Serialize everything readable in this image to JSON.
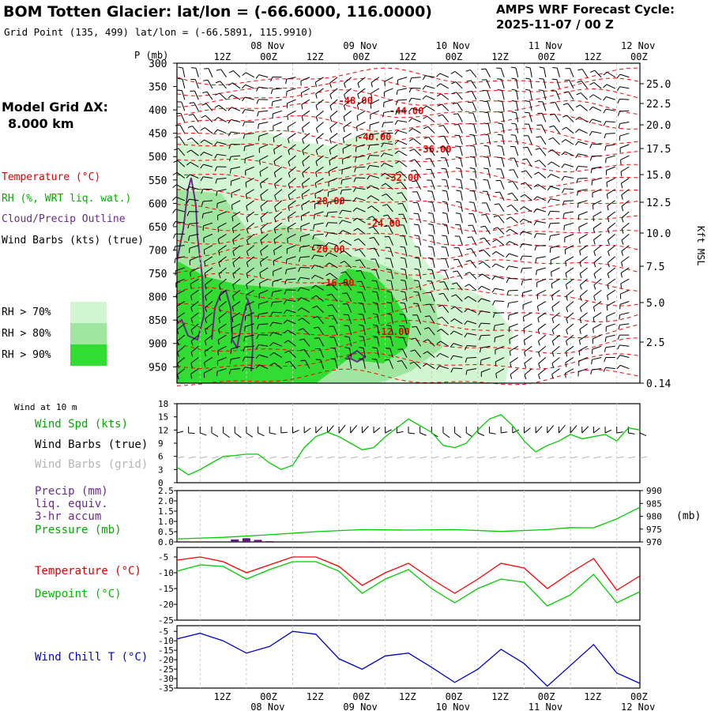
{
  "header": {
    "title": "BOM Totten Glacier:  lat/lon = (-66.6000, 116.0000)",
    "grid_point": "Grid Point (135, 499) lat/lon = (-66.5891, 115.9910)",
    "cycle_line1": "AMPS WRF Forecast Cycle:",
    "cycle_line2": "2025-11-07 / 00  Z"
  },
  "left_panel": {
    "model_grid_label": "Model Grid ΔX:",
    "model_grid_value": "8.000 km",
    "legend_temperature": "Temperature (°C)",
    "legend_rh": "RH (%, WRT liq. wat.)",
    "legend_cloud": "Cloud/Precip Outline",
    "legend_wind": "Wind Barbs (kts) (true)",
    "rh70": "RH > 70%",
    "rh80": "RH > 80%",
    "rh90": "RH > 90%"
  },
  "colors": {
    "rh70": "#d2f5d2",
    "rh80": "#a0e6a0",
    "rh90": "#32dc32",
    "temperature": "#ff0000",
    "rh_text": "#00bb00",
    "cloud": "#6a2a8a",
    "wind_chill": "#0000cc",
    "dewpoint": "#00cc00",
    "grid_barb": "#b4b4b4"
  },
  "time_axis": {
    "hour_labels": [
      "12Z",
      "00Z",
      "12Z",
      "00Z",
      "12Z",
      "00Z",
      "12Z",
      "00Z",
      "12Z",
      "00Z"
    ],
    "day_labels": [
      "08 Nov",
      "09 Nov",
      "10 Nov",
      "11 Nov",
      "12 Nov"
    ]
  },
  "chart_data": [
    {
      "type": "heatmap",
      "panel": "vertical cross-section",
      "ylabel": "P (mb)",
      "right_label": "Kft MSL",
      "p_ticks": [
        "300",
        "350",
        "400",
        "450",
        "500",
        "550",
        "600",
        "650",
        "700",
        "750",
        "800",
        "850",
        "900",
        "950"
      ],
      "kft_ticks": [
        "25.0",
        "22.5",
        "20.0",
        "17.5",
        "15.0",
        "12.5",
        "10.0",
        "7.5",
        "5.0",
        "2.5",
        "0.14"
      ],
      "temperature_contours": [
        {
          "label": "-48.00",
          "t": 0.39,
          "p": 380
        },
        {
          "label": "-44.00",
          "t": 0.5,
          "p": 402
        },
        {
          "label": "-40.00",
          "t": 0.43,
          "p": 458
        },
        {
          "label": "-36.00",
          "t": 0.56,
          "p": 484
        },
        {
          "label": "-32.00",
          "t": 0.49,
          "p": 545
        },
        {
          "label": "-28.00",
          "t": 0.33,
          "p": 595
        },
        {
          "label": "-24.00",
          "t": 0.45,
          "p": 643
        },
        {
          "label": "-20.00",
          "t": 0.33,
          "p": 698
        },
        {
          "label": "-16.00",
          "t": 0.35,
          "p": 770
        },
        {
          "label": "-12.00",
          "t": 0.47,
          "p": 875
        }
      ]
    },
    {
      "type": "line",
      "panel": "wind at 10 m",
      "note": "Wind at 10 m",
      "labels": [
        "Wind Spd (kts)",
        "Wind Barbs (true)",
        "Wind Barbs (grid)"
      ],
      "y_ticks": [
        "18",
        "15",
        "12",
        "9",
        "6",
        "3",
        "0"
      ],
      "ylim": [
        0,
        18
      ],
      "series": [
        {
          "name": "Wind Spd (kts)",
          "x": [
            0,
            3,
            6,
            9,
            12,
            15,
            18,
            21,
            24,
            27,
            30,
            33,
            36,
            39,
            42,
            45,
            48,
            51,
            54,
            57,
            60,
            63,
            66,
            69,
            72,
            75,
            78,
            81,
            84,
            87,
            90,
            93,
            96,
            99,
            102,
            105,
            108,
            111,
            114,
            117,
            120
          ],
          "values": [
            3.5,
            1.8,
            3,
            4.5,
            6,
            6.2,
            6.5,
            6.5,
            4.5,
            3,
            4,
            8,
            10.5,
            11.5,
            10.5,
            9,
            7.5,
            8,
            10.5,
            12.5,
            14.5,
            13,
            11.5,
            8.5,
            8,
            9,
            12,
            14.5,
            15.5,
            13,
            9.5,
            7,
            8.5,
            9.5,
            11,
            10,
            10.5,
            11,
            9.5,
            12.5,
            12
          ]
        }
      ]
    },
    {
      "type": "line",
      "panel": "precip and pressure",
      "labels": [
        "Precip (mm)",
        "liq. equiv.",
        "3-hr accum",
        "Pressure (mb)"
      ],
      "right_label": "(mb)",
      "y_ticks_left": [
        "2.5",
        "2.0",
        "1.5",
        "1.0",
        "0.5",
        "0.0"
      ],
      "y_ticks_right": [
        "990",
        "985",
        "980",
        "975",
        "970"
      ],
      "ylim_left": [
        0,
        2.5
      ],
      "ylim_right": [
        970,
        990
      ],
      "series": [
        {
          "name": "Pressure (mb)",
          "x": [
            0,
            12,
            24,
            36,
            48,
            60,
            72,
            84,
            96,
            102,
            108,
            114,
            120
          ],
          "values": [
            971.2,
            971.8,
            972.8,
            974,
            974.8,
            974.6,
            974.8,
            974.1,
            974.8,
            975.6,
            975.5,
            979,
            983.5
          ]
        },
        {
          "name": "Precip (mm)",
          "bars": [
            {
              "x": 15,
              "v": 0.12
            },
            {
              "x": 18,
              "v": 0.18
            },
            {
              "x": 21,
              "v": 0.1
            },
            {
              "x": 24,
              "v": 0.04
            },
            {
              "x": 51,
              "v": 0.03
            }
          ]
        }
      ]
    },
    {
      "type": "line",
      "panel": "temperature and dewpoint",
      "labels": [
        "Temperature (°C)",
        "Dewpoint (°C)"
      ],
      "y_ticks": [
        "-5",
        "-10",
        "-15",
        "-20",
        "-25"
      ],
      "ylim": [
        -25,
        -2
      ],
      "series": [
        {
          "name": "Temperature (°C)",
          "x": [
            0,
            6,
            12,
            18,
            24,
            30,
            36,
            42,
            48,
            54,
            60,
            66,
            72,
            78,
            84,
            90,
            96,
            102,
            108,
            114,
            120
          ],
          "values": [
            -6,
            -5,
            -6.5,
            -10,
            -7.5,
            -5,
            -5,
            -8,
            -14,
            -10,
            -7,
            -12,
            -16.5,
            -12,
            -7,
            -8.5,
            -15,
            -10,
            -5.5,
            -15.5,
            -11
          ]
        },
        {
          "name": "Dewpoint (°C)",
          "x": [
            0,
            6,
            12,
            18,
            24,
            30,
            36,
            42,
            48,
            54,
            60,
            66,
            72,
            78,
            84,
            90,
            96,
            102,
            108,
            114,
            120
          ],
          "values": [
            -9.5,
            -7.5,
            -8,
            -12,
            -9,
            -6.5,
            -6.5,
            -9.5,
            -16.5,
            -12,
            -9,
            -15,
            -19.5,
            -15,
            -12,
            -13,
            -20.5,
            -17,
            -10.5,
            -19.5,
            -16
          ]
        }
      ]
    },
    {
      "type": "line",
      "panel": "wind chill",
      "labels": [
        "Wind Chill T (°C)"
      ],
      "y_ticks": [
        "-5",
        "-10",
        "-15",
        "-20",
        "-25",
        "-30",
        "-35"
      ],
      "ylim": [
        -35,
        -2
      ],
      "series": [
        {
          "name": "Wind Chill T (°C)",
          "x": [
            0,
            6,
            12,
            18,
            24,
            30,
            36,
            42,
            48,
            54,
            60,
            66,
            72,
            78,
            84,
            90,
            96,
            102,
            108,
            114,
            120
          ],
          "values": [
            -9,
            -6,
            -10,
            -16.5,
            -13,
            -5,
            -6.5,
            -19.5,
            -25,
            -18,
            -16.5,
            -24,
            -32,
            -25,
            -14.5,
            -22,
            -34,
            -23,
            -12,
            -27,
            -32.5
          ]
        }
      ]
    }
  ]
}
